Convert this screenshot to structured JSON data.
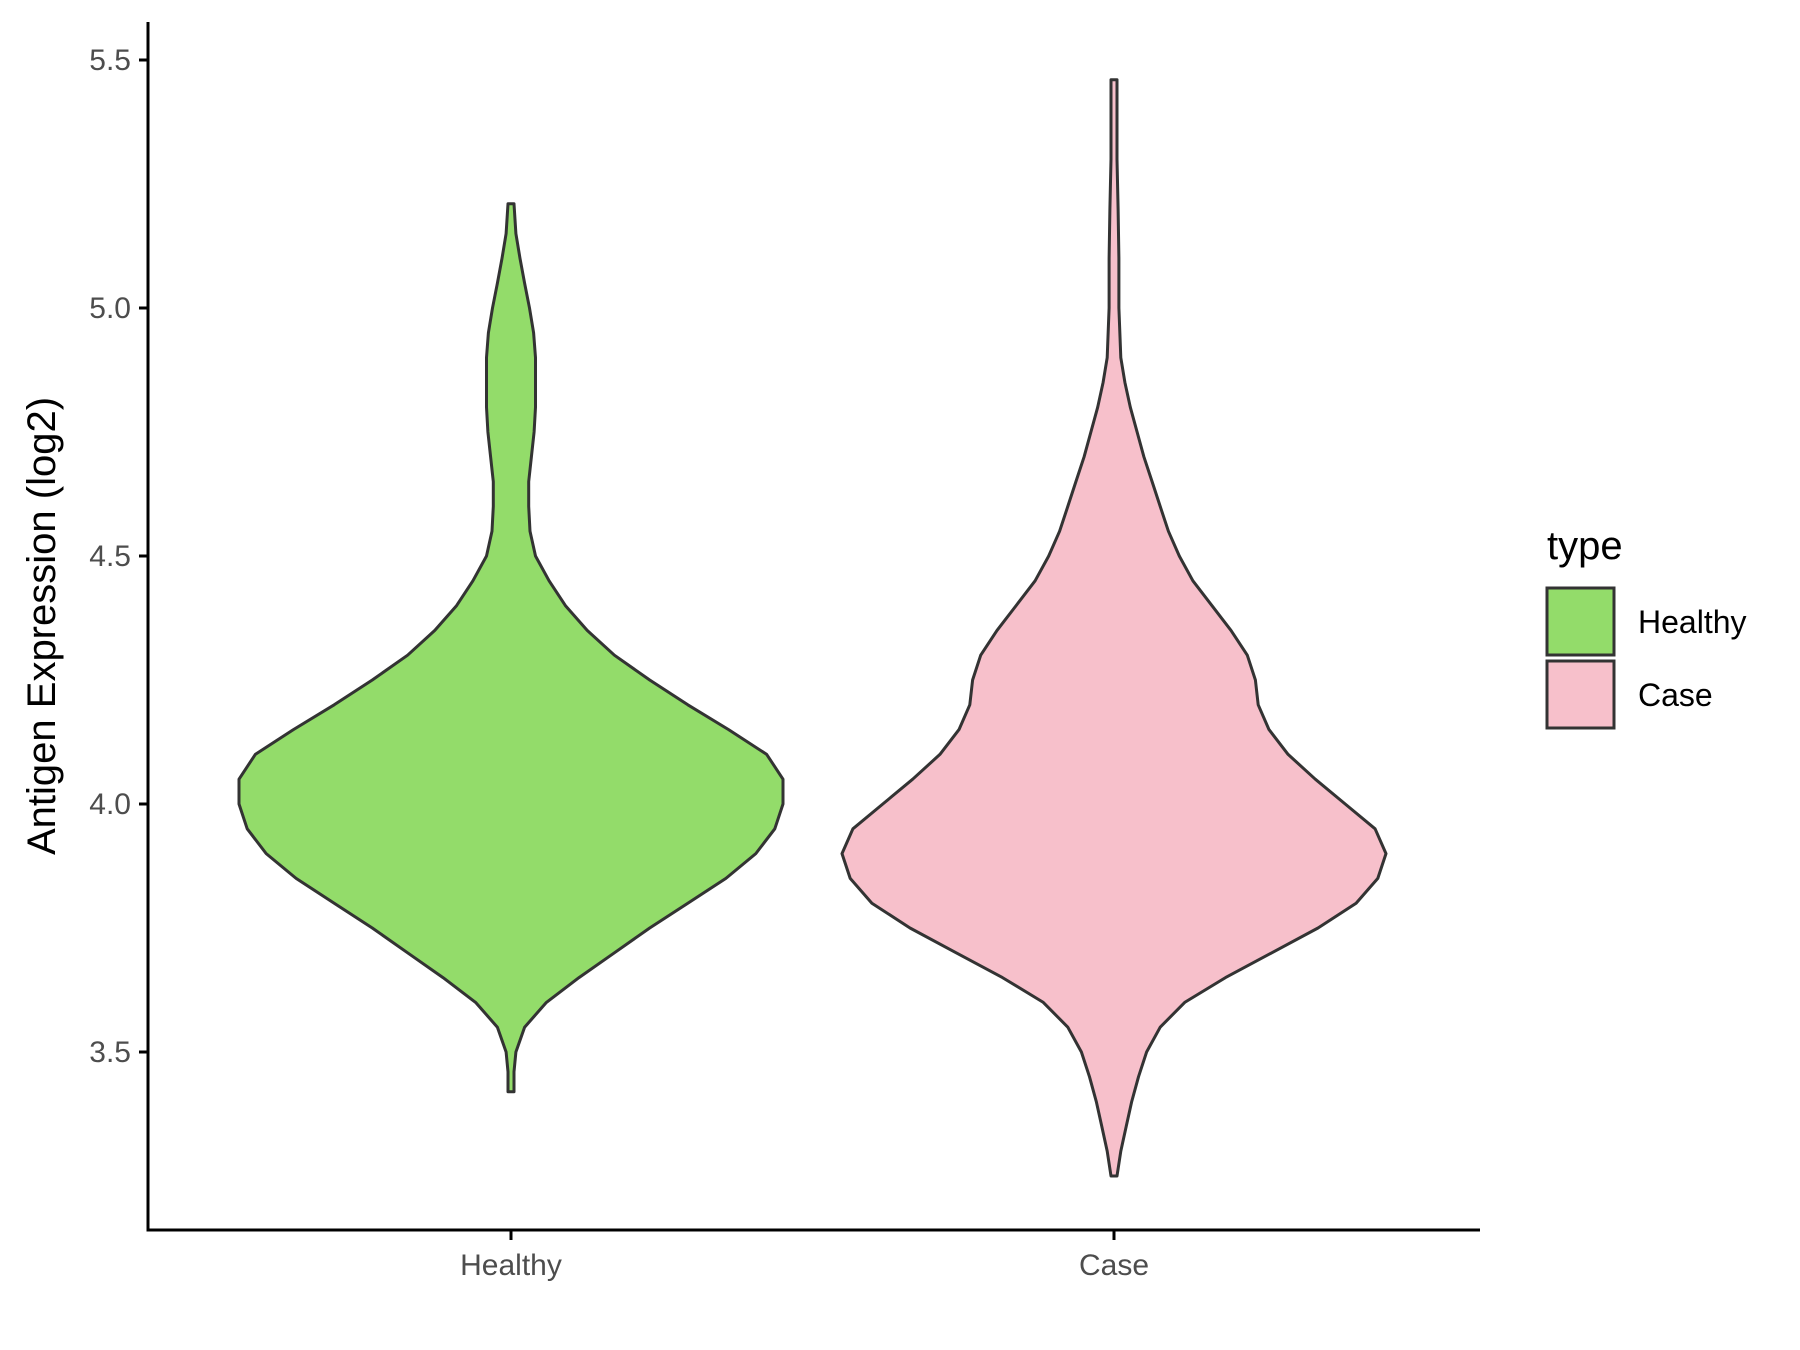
{
  "chart_data": {
    "type": "violin",
    "title": "",
    "xlabel": "",
    "ylabel": "Antigen Expression (log2)",
    "ylim": [
      3.15,
      5.58
    ],
    "yticks": [
      "3.5",
      "4.0",
      "4.5",
      "5.0",
      "5.5"
    ],
    "categories": [
      "Healthy",
      "Case"
    ],
    "grid": false,
    "legend": {
      "title": "type",
      "position": "right",
      "entries": [
        "Healthy",
        "Case"
      ]
    },
    "colors": {
      "Healthy": "#93dc6a",
      "Case": "#f7c0cb",
      "outline": "#333333",
      "axis": "#000000"
    },
    "series": [
      {
        "name": "Healthy",
        "min": 3.42,
        "max": 5.21,
        "density": [
          [
            3.42,
            0.002
          ],
          [
            3.46,
            0.007
          ],
          [
            3.5,
            0.018
          ],
          [
            3.55,
            0.05
          ],
          [
            3.6,
            0.13
          ],
          [
            3.65,
            0.25
          ],
          [
            3.7,
            0.38
          ],
          [
            3.75,
            0.51
          ],
          [
            3.8,
            0.65
          ],
          [
            3.85,
            0.79
          ],
          [
            3.9,
            0.9
          ],
          [
            3.95,
            0.97
          ],
          [
            4.0,
            1.0
          ],
          [
            4.05,
            1.0
          ],
          [
            4.1,
            0.94
          ],
          [
            4.15,
            0.8
          ],
          [
            4.2,
            0.65
          ],
          [
            4.25,
            0.51
          ],
          [
            4.3,
            0.38
          ],
          [
            4.35,
            0.28
          ],
          [
            4.4,
            0.2
          ],
          [
            4.45,
            0.14
          ],
          [
            4.5,
            0.09
          ],
          [
            4.55,
            0.07
          ],
          [
            4.6,
            0.065
          ],
          [
            4.65,
            0.065
          ],
          [
            4.7,
            0.075
          ],
          [
            4.75,
            0.085
          ],
          [
            4.8,
            0.09
          ],
          [
            4.85,
            0.09
          ],
          [
            4.9,
            0.09
          ],
          [
            4.95,
            0.083
          ],
          [
            5.0,
            0.068
          ],
          [
            5.05,
            0.05
          ],
          [
            5.1,
            0.033
          ],
          [
            5.15,
            0.018
          ],
          [
            5.21,
            0.005
          ]
        ]
      },
      {
        "name": "Case",
        "min": 3.25,
        "max": 5.46,
        "density": [
          [
            3.25,
            0.005
          ],
          [
            3.3,
            0.025
          ],
          [
            3.35,
            0.045
          ],
          [
            3.4,
            0.065
          ],
          [
            3.45,
            0.09
          ],
          [
            3.5,
            0.12
          ],
          [
            3.55,
            0.17
          ],
          [
            3.6,
            0.26
          ],
          [
            3.65,
            0.41
          ],
          [
            3.7,
            0.58
          ],
          [
            3.75,
            0.75
          ],
          [
            3.8,
            0.89
          ],
          [
            3.85,
            0.97
          ],
          [
            3.9,
            1.0
          ],
          [
            3.95,
            0.96
          ],
          [
            4.0,
            0.85
          ],
          [
            4.05,
            0.74
          ],
          [
            4.1,
            0.64
          ],
          [
            4.15,
            0.57
          ],
          [
            4.2,
            0.53
          ],
          [
            4.25,
            0.52
          ],
          [
            4.3,
            0.49
          ],
          [
            4.35,
            0.43
          ],
          [
            4.4,
            0.36
          ],
          [
            4.45,
            0.29
          ],
          [
            4.5,
            0.24
          ],
          [
            4.55,
            0.2
          ],
          [
            4.6,
            0.17
          ],
          [
            4.65,
            0.14
          ],
          [
            4.7,
            0.11
          ],
          [
            4.75,
            0.085
          ],
          [
            4.8,
            0.06
          ],
          [
            4.85,
            0.04
          ],
          [
            4.9,
            0.025
          ],
          [
            5.0,
            0.018
          ],
          [
            5.1,
            0.018
          ],
          [
            5.2,
            0.015
          ],
          [
            5.3,
            0.01
          ],
          [
            5.4,
            0.006
          ],
          [
            5.46,
            0.003
          ]
        ]
      }
    ]
  }
}
